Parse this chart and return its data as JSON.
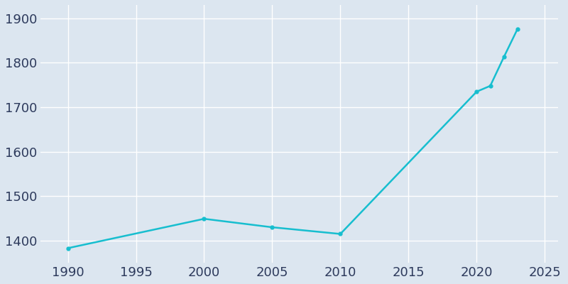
{
  "years": [
    1990,
    2000,
    2005,
    2010,
    2020,
    2021,
    2022,
    2023
  ],
  "population": [
    1383,
    1449,
    1430,
    1415,
    1735,
    1748,
    1813,
    1876
  ],
  "line_color": "#17becf",
  "marker_color": "#17becf",
  "background_color": "#dce6f0",
  "grid_color": "#ffffff",
  "xlim": [
    1988,
    2026
  ],
  "ylim": [
    1350,
    1930
  ],
  "xticks": [
    1990,
    1995,
    2000,
    2005,
    2010,
    2015,
    2020,
    2025
  ],
  "yticks": [
    1400,
    1500,
    1600,
    1700,
    1800,
    1900
  ],
  "tick_label_color": "#2d3a5c",
  "tick_fontsize": 13,
  "line_width": 1.8,
  "marker_size": 3.5
}
